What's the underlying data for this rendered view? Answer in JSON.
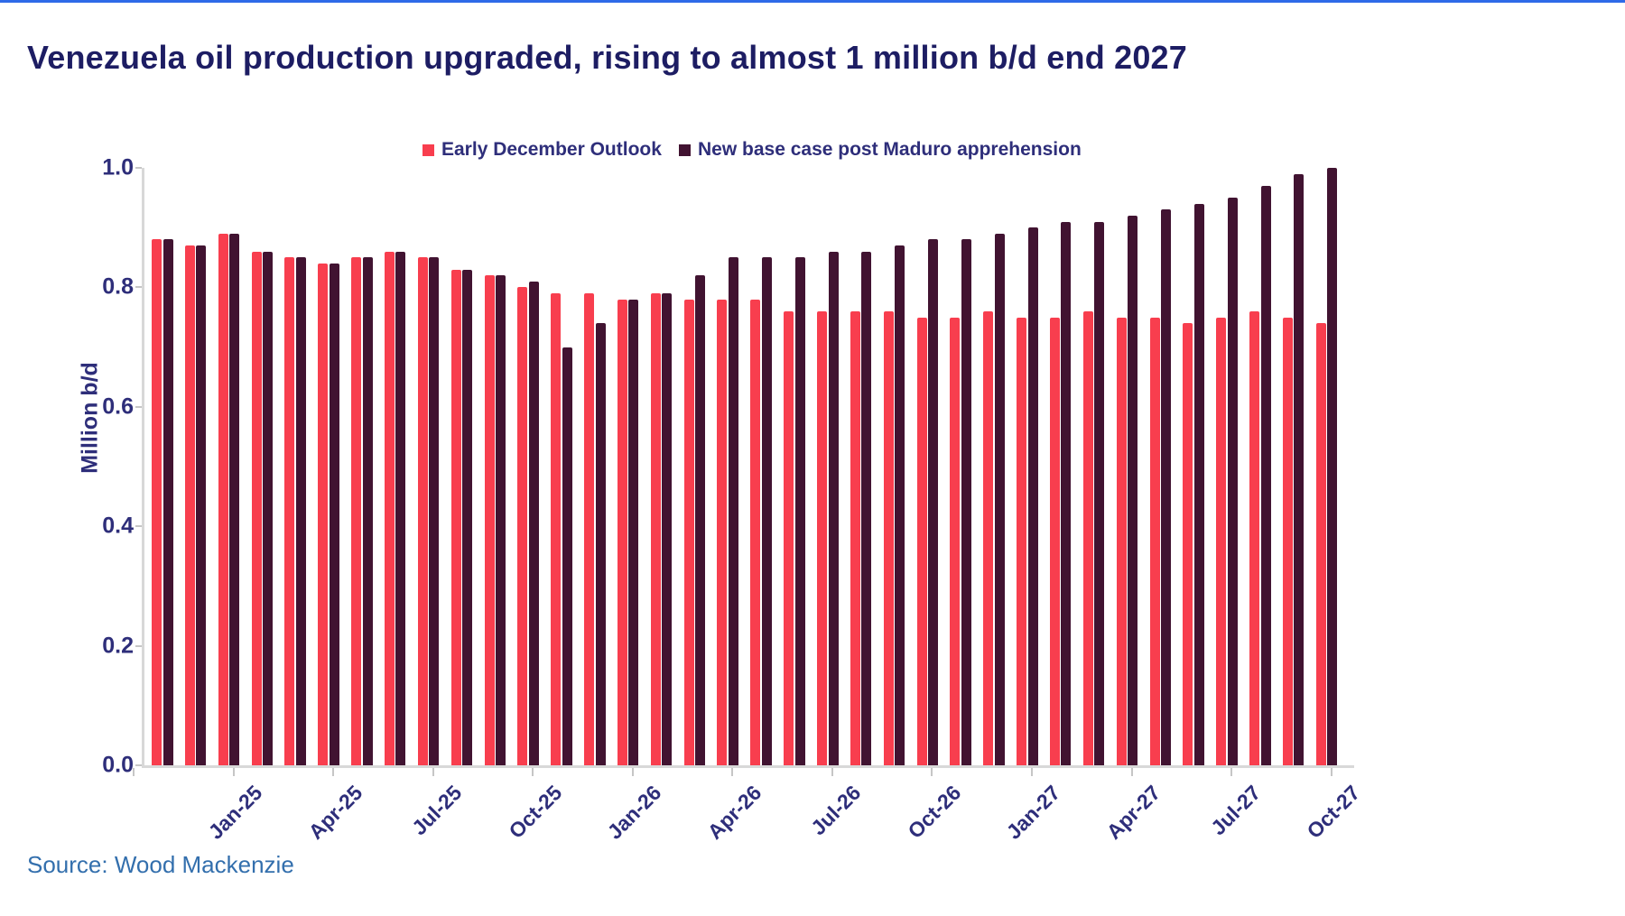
{
  "title": "Venezuela oil production upgraded, rising to almost 1 million b/d end 2027",
  "source": "Source: Wood Mackenzie",
  "colors": {
    "series_red": "#f83e4e",
    "series_dark": "#411331",
    "title_navy": "#1d1d63",
    "axis_navy": "#2e2e7a",
    "source_blue": "#336fad",
    "axis_line_gray": "#d8d8d8",
    "top_border_blue": "#2e6ae8"
  },
  "chart_data": {
    "type": "bar",
    "title": "Venezuela oil production upgraded, rising to almost 1 million b/d end 2027",
    "xlabel": "",
    "ylabel": "Million b/d",
    "ylim": [
      0.0,
      1.0
    ],
    "ytick_labels": [
      "1.0",
      "0.8",
      "0.6",
      "0.4",
      "0.2",
      "0.0"
    ],
    "ytick_values": [
      1.0,
      0.8,
      0.6,
      0.4,
      0.2,
      0.0
    ],
    "xtick_labels": [
      "Jan-25",
      "Apr-25",
      "Jul-25",
      "Oct-25",
      "Jan-26",
      "Apr-26",
      "Jul-26",
      "Oct-26",
      "Jan-27",
      "Apr-27",
      "Jul-27",
      "Oct-27"
    ],
    "grid": false,
    "legend_position": "top",
    "categories": [
      "Jan-25",
      "Feb-25",
      "Mar-25",
      "Apr-25",
      "May-25",
      "Jun-25",
      "Jul-25",
      "Aug-25",
      "Sep-25",
      "Oct-25",
      "Nov-25",
      "Dec-25",
      "Jan-26",
      "Feb-26",
      "Mar-26",
      "Apr-26",
      "May-26",
      "Jun-26",
      "Jul-26",
      "Aug-26",
      "Sep-26",
      "Oct-26",
      "Nov-26",
      "Dec-26",
      "Jan-27",
      "Feb-27",
      "Mar-27",
      "Apr-27",
      "May-27",
      "Jun-27",
      "Jul-27",
      "Aug-27",
      "Sep-27",
      "Oct-27",
      "Nov-27",
      "Dec-27"
    ],
    "series": [
      {
        "name": "Early December Outlook",
        "color": "#f83e4e",
        "values": [
          0.88,
          0.87,
          0.89,
          0.86,
          0.85,
          0.84,
          0.85,
          0.86,
          0.85,
          0.83,
          0.82,
          0.8,
          0.79,
          0.79,
          0.78,
          0.79,
          0.78,
          0.78,
          0.78,
          0.76,
          0.76,
          0.76,
          0.76,
          0.75,
          0.75,
          0.76,
          0.75,
          0.75,
          0.76,
          0.75,
          0.75,
          0.74,
          0.75,
          0.76,
          0.75,
          0.74
        ]
      },
      {
        "name": "New base case post Maduro apprehension",
        "color": "#411331",
        "values": [
          0.88,
          0.87,
          0.89,
          0.86,
          0.85,
          0.84,
          0.85,
          0.86,
          0.85,
          0.83,
          0.82,
          0.81,
          0.7,
          0.74,
          0.78,
          0.79,
          0.82,
          0.85,
          0.85,
          0.85,
          0.86,
          0.86,
          0.87,
          0.88,
          0.88,
          0.89,
          0.9,
          0.91,
          0.91,
          0.92,
          0.93,
          0.94,
          0.95,
          0.97,
          0.99,
          1.0
        ]
      }
    ]
  }
}
